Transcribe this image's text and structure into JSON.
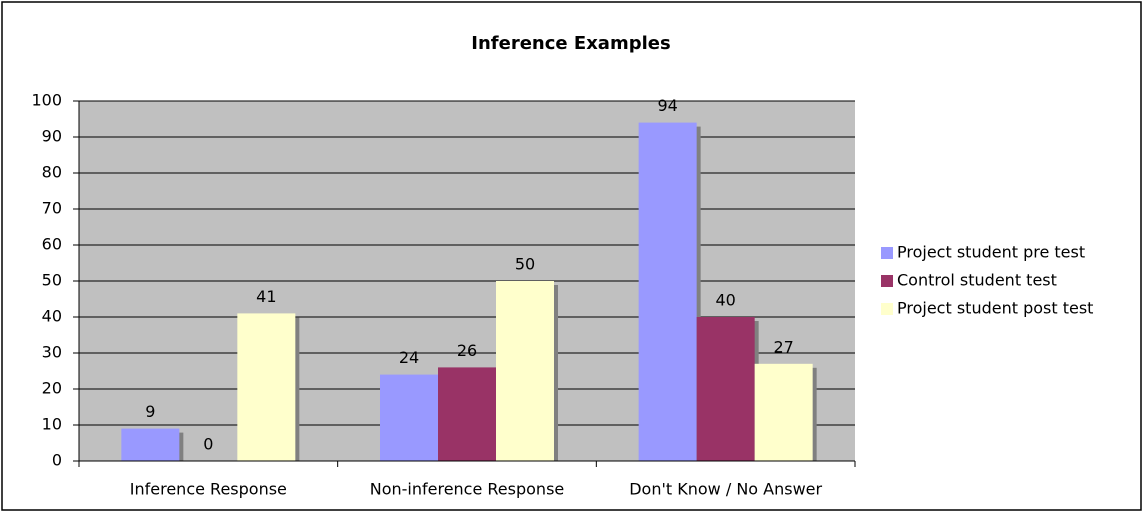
{
  "chart_data": {
    "type": "bar",
    "title": "Inference Examples",
    "categories": [
      "Inference Response",
      "Non-inference Response",
      "Don't Know / No Answer"
    ],
    "series": [
      {
        "name": "Project student pre test",
        "color": "#9999ff",
        "values": [
          9,
          24,
          94
        ]
      },
      {
        "name": "Control student test",
        "color": "#993366",
        "values": [
          0,
          26,
          40
        ]
      },
      {
        "name": "Project student post test",
        "color": "#ffffcc",
        "values": [
          41,
          50,
          27
        ]
      }
    ],
    "ylim": [
      0,
      100
    ],
    "yticks": [
      0,
      10,
      20,
      30,
      40,
      50,
      60,
      70,
      80,
      90,
      100
    ],
    "grid": true,
    "legend": "right",
    "plot_background": "#c0c0c0"
  }
}
